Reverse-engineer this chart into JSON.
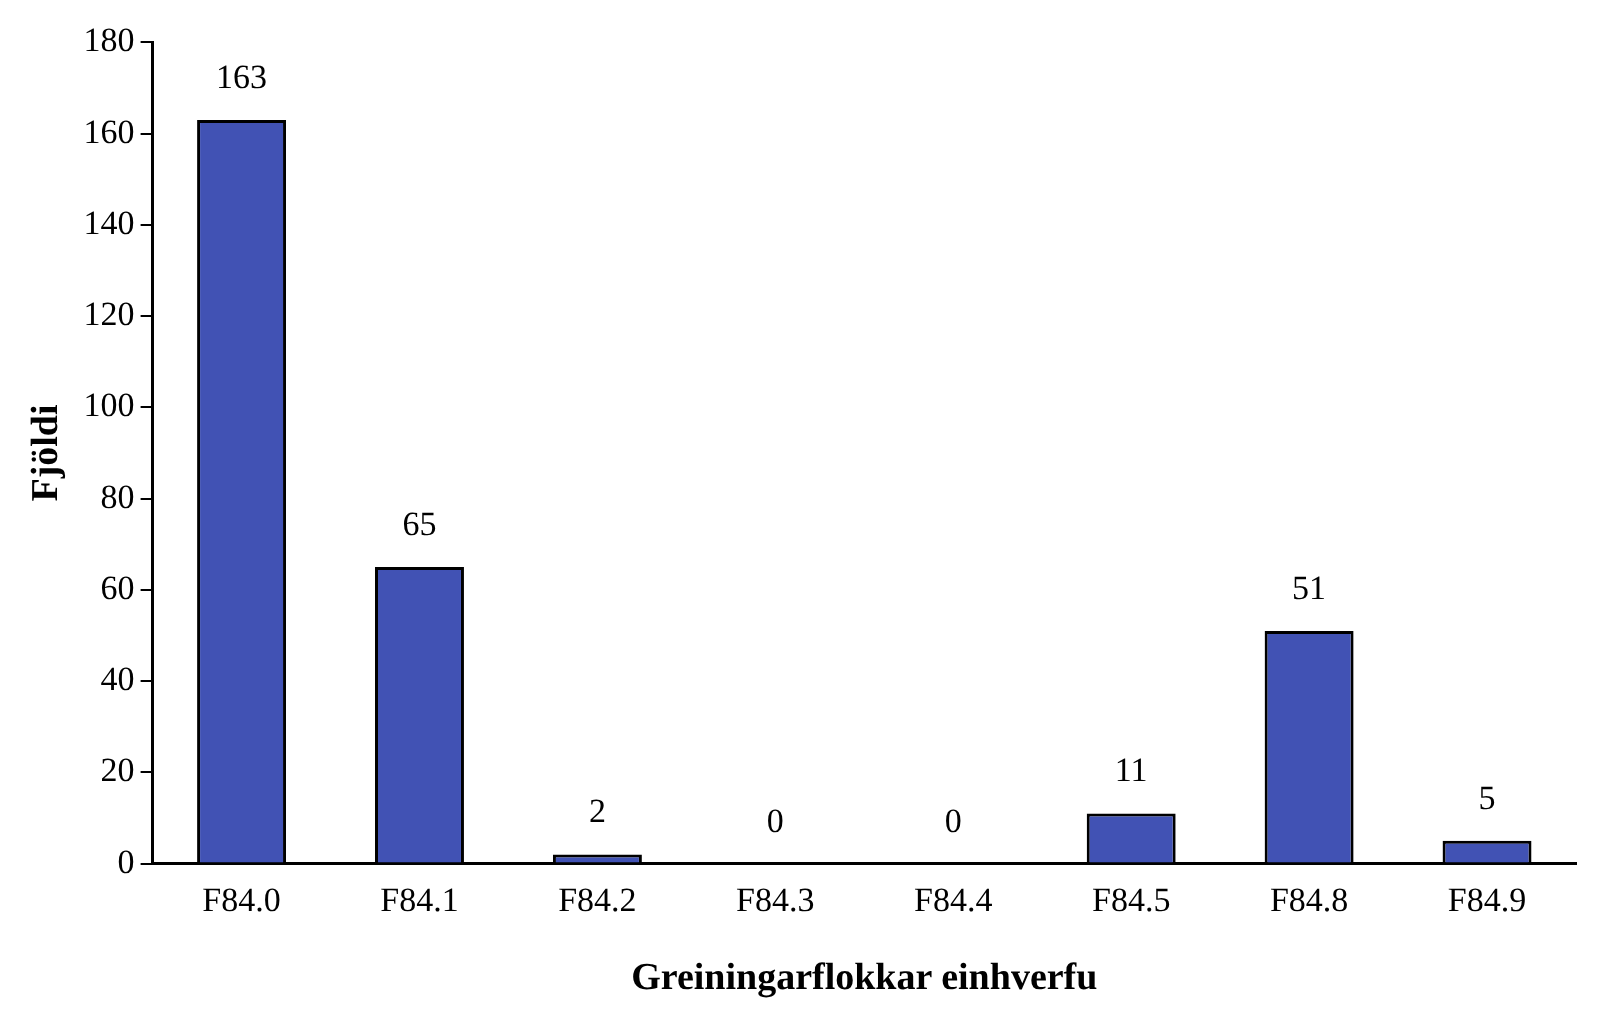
{
  "chart_data": {
    "type": "bar",
    "xlabel": "Greiningarflokkar einhverfu",
    "ylabel": "Fjöldi",
    "categories": [
      "F84.0",
      "F84.1",
      "F84.2",
      "F84.3",
      "F84.4",
      "F84.5",
      "F84.8",
      "F84.9"
    ],
    "values": [
      163,
      65,
      2,
      0,
      0,
      11,
      51,
      5
    ],
    "color": "#4152b4",
    "ylim": [
      0,
      180
    ],
    "yticks": [
      0,
      20,
      40,
      60,
      80,
      100,
      120,
      140,
      160,
      180
    ],
    "grid": false,
    "data_labels": true,
    "legend": false
  }
}
